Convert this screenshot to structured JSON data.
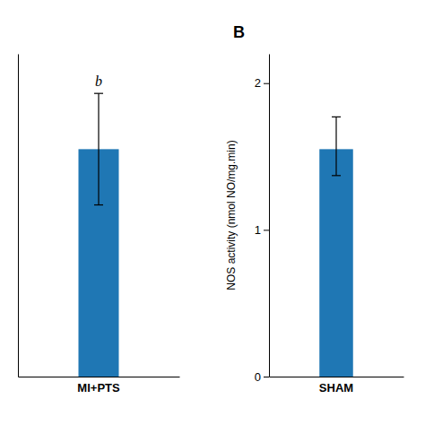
{
  "chart_data": [
    {
      "type": "bar",
      "categories": [
        "MI+PTS"
      ],
      "values": [
        1.55
      ],
      "errors": [
        0.38
      ],
      "annotations": [
        "b"
      ],
      "ylim": [
        0,
        2.2
      ],
      "tick_labels": "x"
    },
    {
      "type": "bar",
      "title": "B",
      "categories": [
        "SHAM"
      ],
      "values": [
        1.55
      ],
      "error_up": [
        0.22
      ],
      "error_down": [
        0.18
      ],
      "ylim": [
        0,
        2.2
      ],
      "yticks": [
        0,
        1,
        2
      ],
      "ylabel": "NOS activity (nmol NO/mg.min)"
    }
  ]
}
